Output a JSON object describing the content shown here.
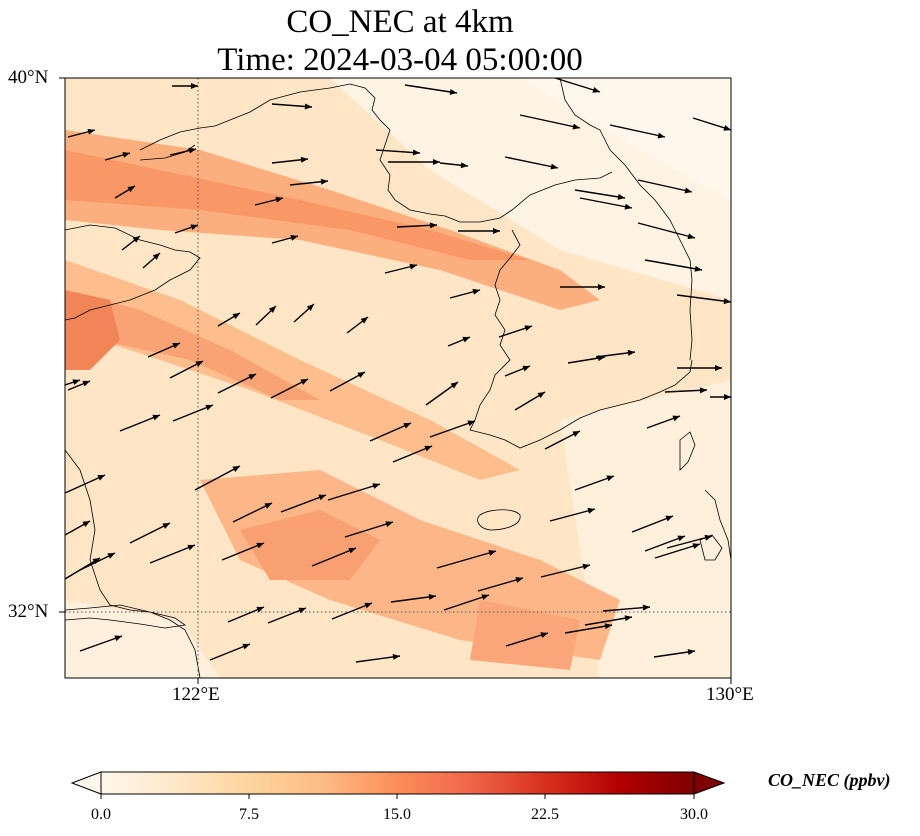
{
  "title": {
    "line1": "CO_NEC at 4km",
    "line2": "Time: 2024-03-04 05:00:00"
  },
  "axes": {
    "lat_labels": [
      "40°N",
      "32°N"
    ],
    "lon_labels": [
      "122°E",
      "130°E"
    ],
    "lat_range": [
      31,
      40
    ],
    "lon_range": [
      120,
      130
    ],
    "gridlines": {
      "lat": 32,
      "lon": 122,
      "style": "dotted"
    }
  },
  "colorbar": {
    "label": "CO_NEC (ppbv)",
    "ticks": [
      "0.0",
      "7.5",
      "15.0",
      "22.5",
      "30.0"
    ],
    "range": [
      0,
      30
    ],
    "colormap": "OrRd",
    "extend": "both",
    "colors": [
      "#fff7ec",
      "#fee8c8",
      "#fdd49e",
      "#fdbb84",
      "#fc8d59",
      "#ef6548",
      "#d7301f",
      "#b30000",
      "#7f0000"
    ]
  },
  "chart_data": {
    "type": "heatmap",
    "variable": "CO_NEC",
    "units": "ppbv",
    "level": "4km",
    "time": "2024-03-04 05:00:00",
    "field_description": "Concentration field overlaid on coastlines; wind vectors shown as arrows.",
    "wind_vectors": "arrows pointing generally east to east-northeast"
  }
}
